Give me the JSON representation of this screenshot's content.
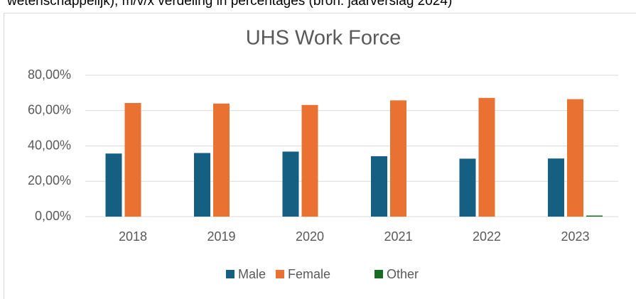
{
  "caption": "wetenschappelijk), m/v/x verdeling in percentages (bron: jaarverslag 2024)",
  "chart_data": {
    "type": "bar",
    "title": "UHS Work Force",
    "categories": [
      "2018",
      "2019",
      "2020",
      "2021",
      "2022",
      "2023"
    ],
    "series": [
      {
        "name": "Male",
        "color": "#156082",
        "values": [
          35.7,
          36.0,
          36.8,
          34.2,
          32.8,
          32.9
        ]
      },
      {
        "name": "Female",
        "color": "#e97132",
        "values": [
          64.3,
          64.0,
          63.2,
          65.8,
          67.2,
          66.5
        ]
      },
      {
        "name": "Other",
        "color": "#196b24",
        "values": [
          0,
          0,
          0,
          0,
          0,
          0.6
        ]
      }
    ],
    "ylim": [
      0,
      80
    ],
    "yticks": [
      {
        "value": 0,
        "label": "0,00%"
      },
      {
        "value": 20,
        "label": "20,00%"
      },
      {
        "value": 40,
        "label": "40,00%"
      },
      {
        "value": 60,
        "label": "60,00%"
      },
      {
        "value": 80,
        "label": "80,00%"
      }
    ],
    "grid": true,
    "legend": "bottom"
  }
}
